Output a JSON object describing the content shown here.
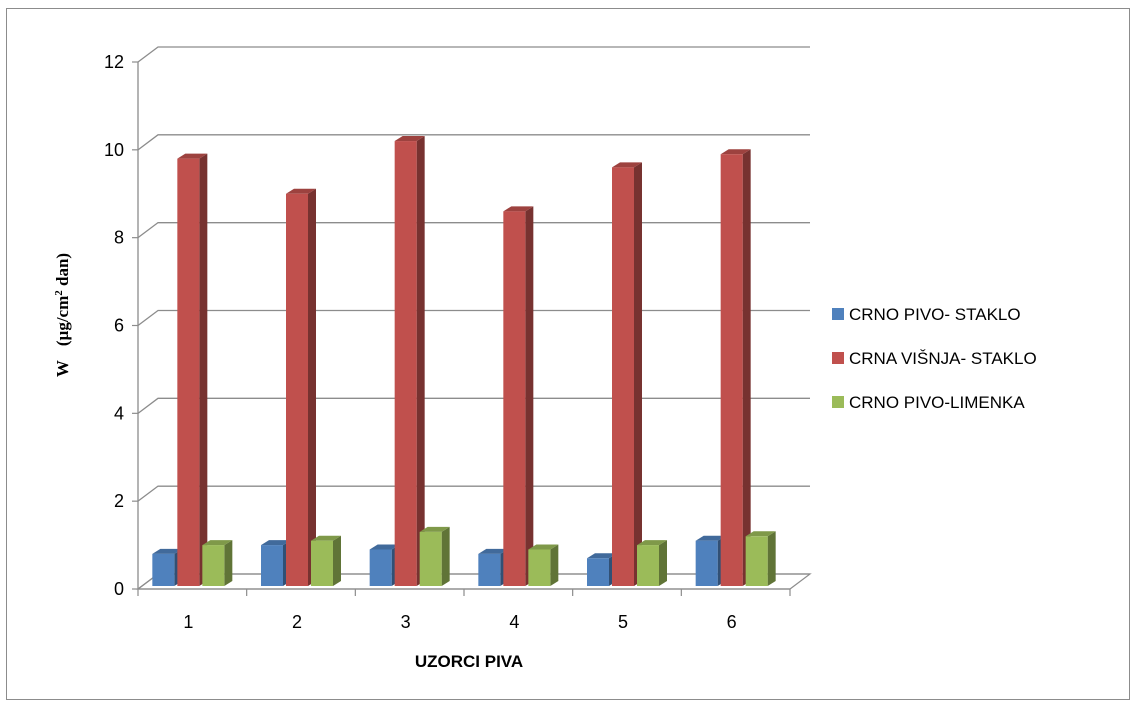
{
  "chart_data": {
    "type": "bar",
    "title": "",
    "xlabel": "UZORCI PIVA",
    "ylabel": {
      "prefix": "W",
      "unit_main": "(µg/cm",
      "unit_sup": "2",
      "unit_end": " dan)"
    },
    "ylim": [
      0,
      12
    ],
    "yticks": [
      0,
      2,
      4,
      6,
      8,
      10,
      12
    ],
    "categories": [
      "1",
      "2",
      "3",
      "4",
      "5",
      "6"
    ],
    "grid": true,
    "legend_position": "right",
    "series": [
      {
        "name": "CRNO PIVO- STAKLO",
        "color": "#4f81bd",
        "values": [
          0.8,
          1.0,
          0.9,
          0.8,
          0.7,
          1.1
        ]
      },
      {
        "name": "CRNA VIŠNJA- STAKLO",
        "color": "#c0504d",
        "values": [
          9.8,
          9.0,
          10.2,
          8.6,
          9.6,
          9.9
        ]
      },
      {
        "name": "CRNO PIVO-LIMENKA",
        "color": "#9bbb59",
        "values": [
          1.0,
          1.1,
          1.3,
          0.9,
          1.0,
          1.2
        ]
      }
    ]
  }
}
